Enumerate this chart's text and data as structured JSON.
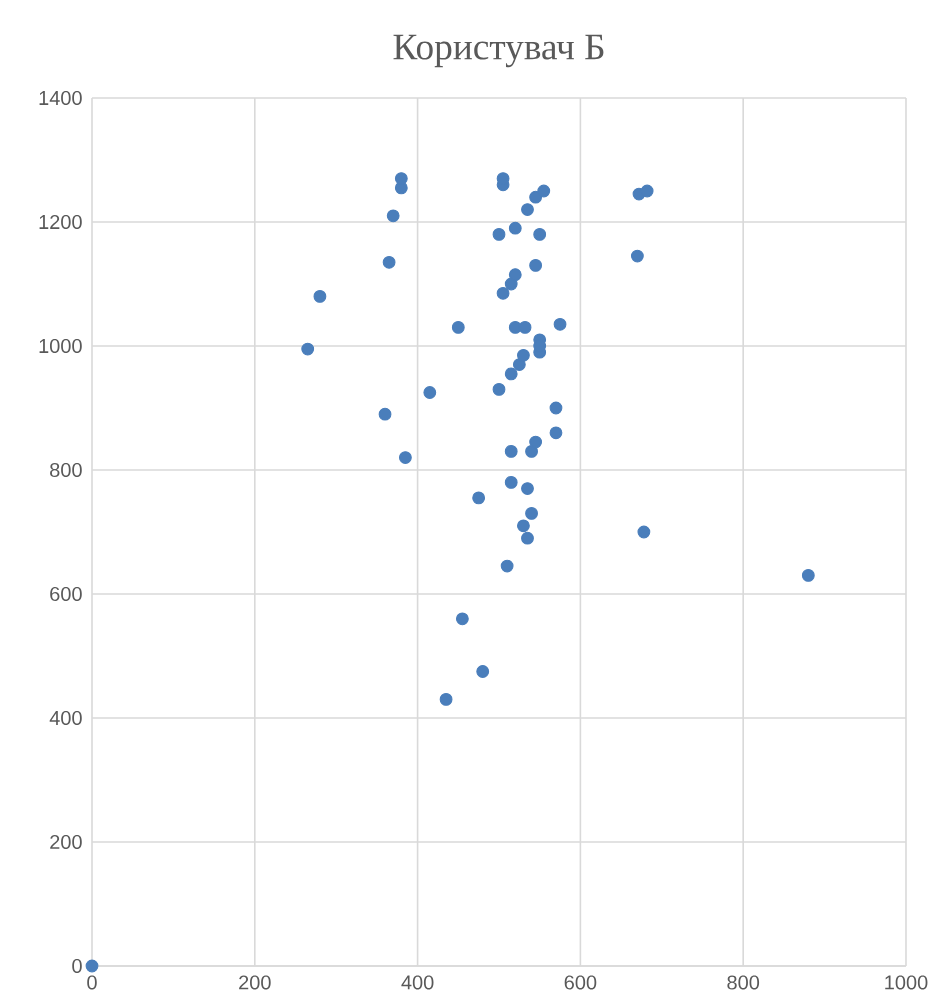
{
  "chart_data": {
    "type": "scatter",
    "title": "Користувач Б",
    "color": "#4a7ebb",
    "marker": "circle",
    "grid": true,
    "x": [
      0,
      265,
      280,
      360,
      365,
      370,
      380,
      380,
      385,
      415,
      435,
      450,
      455,
      475,
      480,
      500,
      500,
      505,
      505,
      505,
      510,
      515,
      515,
      515,
      515,
      520,
      520,
      525,
      520,
      532,
      530,
      530,
      535,
      535,
      535,
      540,
      540,
      545,
      545,
      545,
      550,
      550,
      550,
      550,
      555,
      570,
      570,
      575,
      670,
      672,
      682,
      678,
      880
    ],
    "values": [
      0,
      995,
      1080,
      890,
      1135,
      1210,
      1255,
      1270,
      820,
      925,
      430,
      1030,
      560,
      755,
      475,
      930,
      1180,
      1085,
      1260,
      1270,
      645,
      780,
      830,
      955,
      1100,
      1190,
      1115,
      970,
      1030,
      1030,
      985,
      710,
      1220,
      770,
      690,
      730,
      830,
      1130,
      845,
      1240,
      1180,
      1010,
      990,
      1000,
      1250,
      860,
      900,
      1035,
      1145,
      1245,
      1250,
      700,
      630
    ],
    "xlim": [
      0,
      1000
    ],
    "xticks": [
      0,
      200,
      400,
      600,
      800,
      1000
    ],
    "ylim": [
      0,
      1400
    ],
    "yticks": [
      0,
      200,
      400,
      600,
      800,
      1000,
      1200,
      1400
    ]
  }
}
